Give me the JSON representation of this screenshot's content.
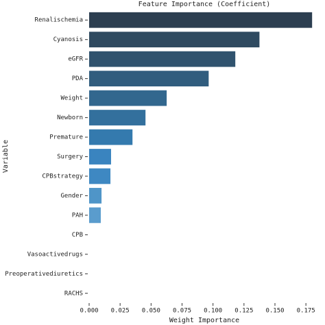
{
  "chart_data": {
    "type": "barh",
    "title": "Feature Importance (Coefficient)",
    "x_label": "Weight Importance",
    "y_label": "Variable",
    "categories": [
      "Renalischemia",
      "Cyanosis",
      "eGFR",
      "PDA",
      "Weight",
      "Newborn",
      "Premature",
      "Surgery",
      "CPBstrategy",
      "Gender",
      "PAH",
      "CPB",
      "Vasoactivedrugs",
      "Preoperativediuretics",
      "RACHS"
    ],
    "values": [
      0.18,
      0.1375,
      0.118,
      0.0965,
      0.0626,
      0.0455,
      0.035,
      0.0177,
      0.0172,
      0.01,
      0.0094,
      0,
      0,
      0,
      0
    ],
    "colors": [
      "#2c3e50",
      "#2f4a60",
      "#30536e",
      "#315d7e",
      "#32678e",
      "#33709d",
      "#347aae",
      "#3a84bf",
      "#3e88c2",
      "#4f95c8",
      "#5a9ccd",
      "#62a2d0",
      "#6aa8d3",
      "#72aed6",
      "#7ab4d9"
    ],
    "xlim": [
      0,
      0.181
    ],
    "xticks": [
      {
        "value": 0,
        "label": "0.000"
      },
      {
        "value": 0.025,
        "label": "0.025"
      },
      {
        "value": 0.05,
        "label": "0.050"
      },
      {
        "value": 0.075,
        "label": "0.075"
      },
      {
        "value": 0.1,
        "label": "0.100"
      },
      {
        "value": 0.125,
        "label": "0.125"
      },
      {
        "value": 0.15,
        "label": "0.150"
      },
      {
        "value": 0.175,
        "label": "0.175"
      }
    ],
    "grid": false
  }
}
